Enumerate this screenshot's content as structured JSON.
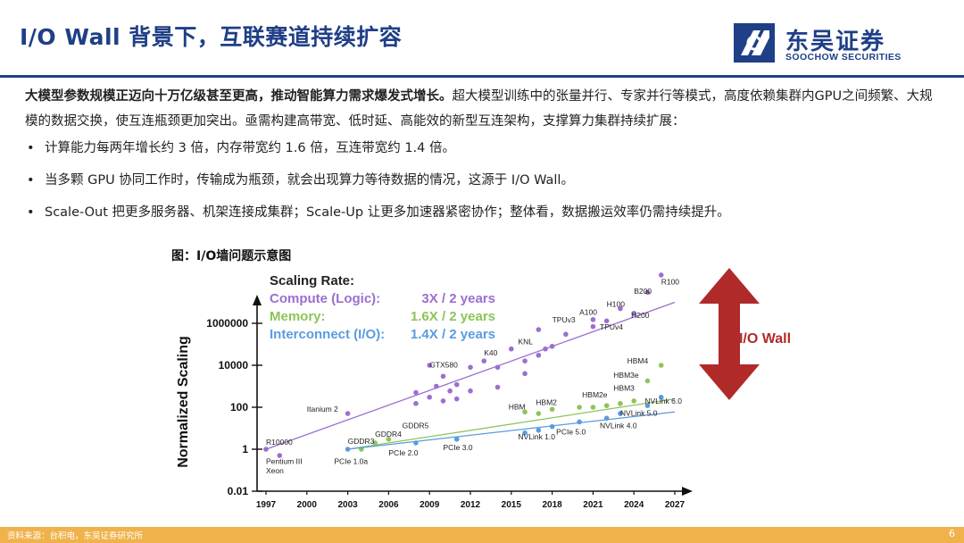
{
  "header": {
    "title": "I/O Wall 背景下，互联赛道持续扩容",
    "logo_cn": "东吴证券",
    "logo_en": "SOOCHOW SECURITIES"
  },
  "intro": {
    "bold": "大模型参数规模正迈向十万亿级甚至更高，推动智能算力需求爆发式增长。",
    "rest": "超大模型训练中的张量并行、专家并行等模式，高度依赖集群内GPU之间频繁、大规模的数据交换，使互连瓶颈更加突出。亟需构建高带宽、低时延、高能效的新型互连架构，支撑算力集群持续扩展："
  },
  "bullets": [
    "计算能力每两年增长约 3 倍，内存带宽约 1.6 倍，互连带宽约 1.4 倍。",
    "当多颗 GPU 协同工作时，传输成为瓶颈，就会出现算力等待数据的情况，这源于 I/O Wall。",
    "Scale-Out 把更多服务器、机架连接成集群；Scale-Up 让更多加速器紧密协作；整体看，数据搬运效率仍需持续提升。"
  ],
  "bullet_marker": "•",
  "figure_title": "图：I/O墙问题示意图",
  "footer": {
    "source": "资料来源：台积电，东吴证券研究所",
    "page": "6"
  },
  "colors": {
    "brand": "#1f3f86",
    "compute": "#9b6fd0",
    "memory": "#8dc45a",
    "interconnect": "#5a9be0",
    "arrow": "#b02a2a",
    "footer": "#f0b24a"
  },
  "chart_data": {
    "type": "scatter",
    "yscale": "log",
    "ylabel": "Normalized Scaling",
    "xlabel": "",
    "x_ticks": [
      "1997",
      "2000",
      "2003",
      "2006",
      "2009",
      "2012",
      "2015",
      "2018",
      "2021",
      "2024",
      "2027"
    ],
    "y_ticks": [
      "0.01",
      "1",
      "100",
      "10000",
      "1000000"
    ],
    "xlim": [
      1997,
      2027
    ],
    "legend_title": "Scaling Rate:",
    "legend": [
      {
        "name": "Compute (Logic):",
        "rate": "3X / 2 years",
        "color": "#9b6fd0"
      },
      {
        "name": "Memory:",
        "rate": "1.6X / 2 years",
        "color": "#8dc45a"
      },
      {
        "name": "Interconnect (I/O):",
        "rate": "1.4X / 2 years",
        "color": "#5a9be0"
      }
    ],
    "annotation": "I/O Wall",
    "series": [
      {
        "name": "Compute (Logic):",
        "color": "#9b6fd0",
        "trend": [
          [
            1997,
            1
          ],
          [
            2027,
            10000000
          ]
        ],
        "points": [
          [
            1997,
            1
          ],
          [
            1998,
            0.5
          ],
          [
            2003,
            50
          ],
          [
            2008,
            150
          ],
          [
            2008,
            500
          ],
          [
            2009,
            300
          ],
          [
            2009,
            10000
          ],
          [
            2009.5,
            1000
          ],
          [
            2010,
            200
          ],
          [
            2010,
            3000
          ],
          [
            2010.5,
            600
          ],
          [
            2011,
            1200
          ],
          [
            2011,
            250
          ],
          [
            2012,
            8000
          ],
          [
            2012,
            600
          ],
          [
            2013,
            16000
          ],
          [
            2014,
            8000
          ],
          [
            2014,
            900
          ],
          [
            2015,
            60000
          ],
          [
            2016,
            16000
          ],
          [
            2016,
            4000
          ],
          [
            2017,
            500000
          ],
          [
            2017,
            30000
          ],
          [
            2017.5,
            60000
          ],
          [
            2018,
            80000
          ],
          [
            2019,
            300000
          ],
          [
            2021,
            1500000
          ],
          [
            2021,
            700000
          ],
          [
            2022,
            1300000
          ],
          [
            2023,
            5000000
          ],
          [
            2024,
            3000000
          ],
          [
            2025,
            30000000
          ],
          [
            2026,
            200000000
          ]
        ],
        "labels": [
          {
            "text": "R10000",
            "x": 1997,
            "y": 1.6
          },
          {
            "text": "Pentium III",
            "x": 1997,
            "y": 0.2
          },
          {
            "text": "Xeon",
            "x": 1997,
            "y": 0.07
          },
          {
            "text": "Itanium 2",
            "x": 2000,
            "y": 60
          },
          {
            "text": "GTX580",
            "x": 2009,
            "y": 8000
          },
          {
            "text": "K40",
            "x": 2013,
            "y": 30000
          },
          {
            "text": "KNL",
            "x": 2015.5,
            "y": 100000
          },
          {
            "text": "TPUv3",
            "x": 2018,
            "y": 1100000
          },
          {
            "text": "A100",
            "x": 2020,
            "y": 2500000
          },
          {
            "text": "H100",
            "x": 2022,
            "y": 6000000
          },
          {
            "text": "TPUv4",
            "x": 2021.5,
            "y": 500000
          },
          {
            "text": "H200",
            "x": 2023.8,
            "y": 1800000
          },
          {
            "text": "B200",
            "x": 2024,
            "y": 25000000
          },
          {
            "text": "R100",
            "x": 2026,
            "y": 70000000
          }
        ]
      },
      {
        "name": "Memory:",
        "color": "#8dc45a",
        "trend": [
          [
            2003,
            1
          ],
          [
            2027,
            250
          ]
        ],
        "points": [
          [
            2004,
            1
          ],
          [
            2005,
            2
          ],
          [
            2006,
            3
          ],
          [
            2016,
            60
          ],
          [
            2017,
            50
          ],
          [
            2018,
            80
          ],
          [
            2020,
            100
          ],
          [
            2021,
            100
          ],
          [
            2022,
            120
          ],
          [
            2023,
            150
          ],
          [
            2024,
            200
          ],
          [
            2025,
            1800
          ],
          [
            2026,
            10000
          ]
        ],
        "labels": [
          {
            "text": "GDDR3",
            "x": 2003,
            "y": 1.8
          },
          {
            "text": "GDDR4",
            "x": 2005,
            "y": 4
          },
          {
            "text": "GDDR5",
            "x": 2007,
            "y": 10
          },
          {
            "text": "HBM",
            "x": 2014.8,
            "y": 80
          },
          {
            "text": "HBM2",
            "x": 2016.8,
            "y": 130
          },
          {
            "text": "HBM2e",
            "x": 2020.2,
            "y": 300
          },
          {
            "text": "HBM3",
            "x": 2022.5,
            "y": 600
          },
          {
            "text": "HBM3e",
            "x": 2022.5,
            "y": 2500
          },
          {
            "text": "HBM4",
            "x": 2023.5,
            "y": 12000
          }
        ]
      },
      {
        "name": "Interconnect (I/O):",
        "color": "#5a9be0",
        "trend": [
          [
            2003,
            1
          ],
          [
            2027,
            60
          ]
        ],
        "points": [
          [
            2003,
            1
          ],
          [
            2008,
            2
          ],
          [
            2011,
            3
          ],
          [
            2016,
            6
          ],
          [
            2017,
            8
          ],
          [
            2018,
            12
          ],
          [
            2020,
            20
          ],
          [
            2022,
            30
          ],
          [
            2023,
            50
          ],
          [
            2025,
            120
          ],
          [
            2026,
            300
          ]
        ],
        "labels": [
          {
            "text": "PCIe 1.0a",
            "x": 2002,
            "y": 0.2
          },
          {
            "text": "PCIe 2.0",
            "x": 2006,
            "y": 0.5
          },
          {
            "text": "PCIe 3.0",
            "x": 2010,
            "y": 0.9
          },
          {
            "text": "NVLink 1.0",
            "x": 2015.5,
            "y": 3
          },
          {
            "text": "PCIe 5.0",
            "x": 2018.3,
            "y": 5
          },
          {
            "text": "NVLink 4.0",
            "x": 2021.5,
            "y": 10
          },
          {
            "text": "NVLink 5.0",
            "x": 2023,
            "y": 40
          },
          {
            "text": "NVLink 6.0",
            "x": 2024.8,
            "y": 150
          }
        ]
      }
    ]
  }
}
